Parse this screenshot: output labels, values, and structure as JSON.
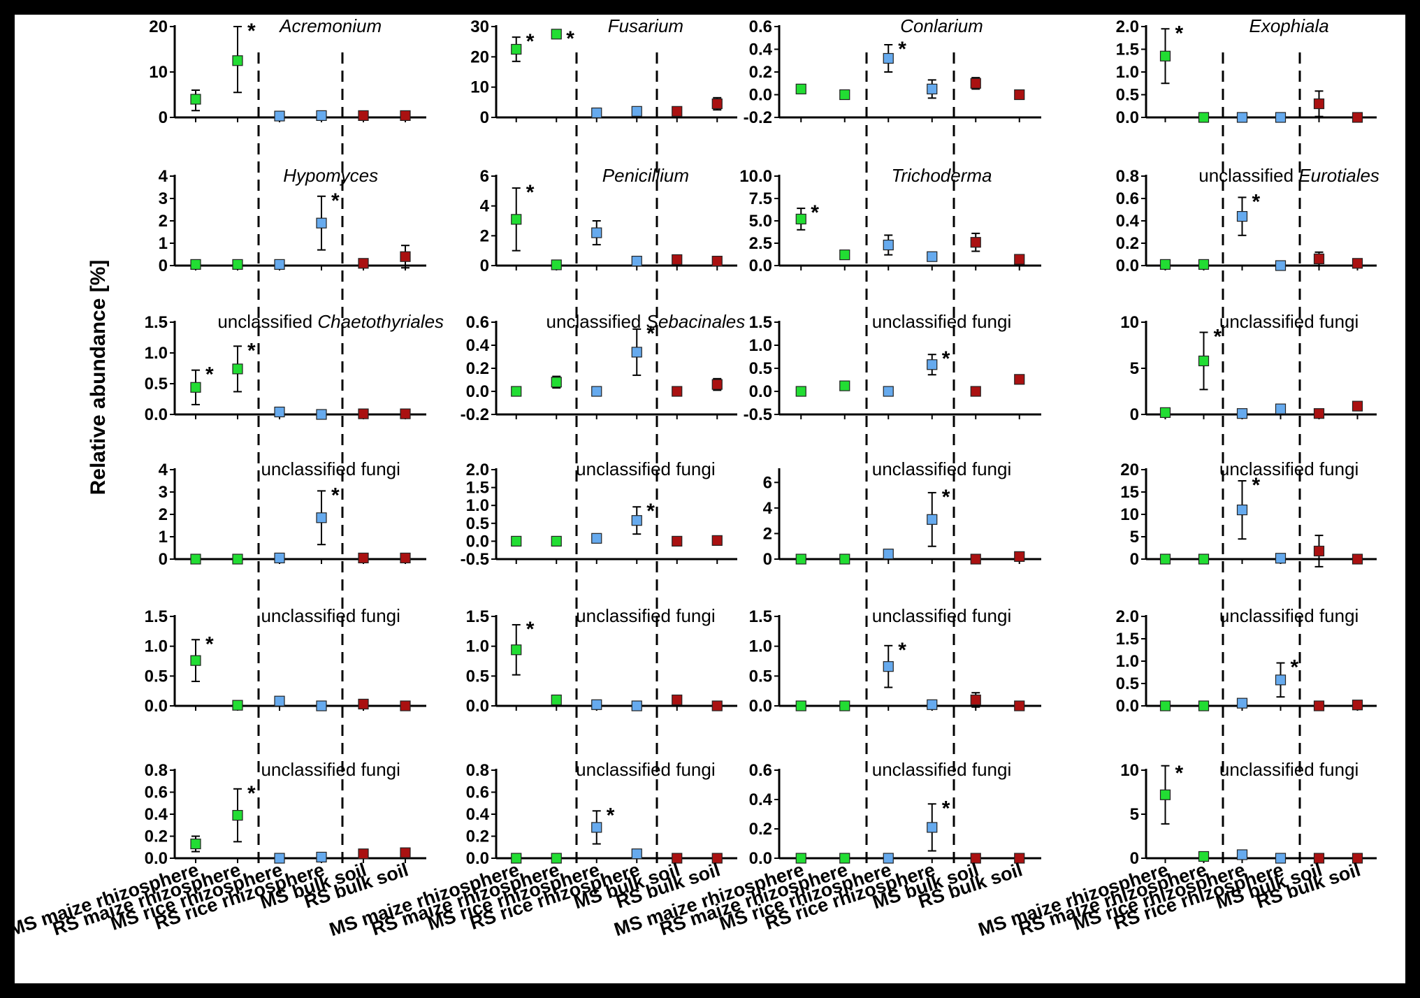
{
  "y_axis_label": "Relative abundance [%]",
  "categories": [
    "MS maize rhizosphere",
    "RS maize rhizosphere",
    "MS rice rhizosphere",
    "RS rice rhizosphere",
    "MS bulk soil",
    "RS bulk soil"
  ],
  "colors": {
    "maize": "#22dd33",
    "rice": "#66aaee",
    "bulk": "#aa1111",
    "axis": "#000000",
    "background": "#ffffff",
    "frame": "#000000"
  },
  "chart_data": [
    {
      "type": "scatter",
      "title": "Acremonium",
      "title_italic": true,
      "ylim": [
        0,
        20
      ],
      "ticks": [
        "0",
        "10",
        "20"
      ],
      "values": [
        4,
        12.5,
        0.3,
        0.4,
        0.4,
        0.4
      ],
      "err_low": [
        2.5,
        7,
        0,
        0,
        0,
        0
      ],
      "err_high": [
        2,
        7.5,
        0,
        0,
        0,
        0
      ],
      "sig": [
        false,
        true,
        false,
        false,
        false,
        false
      ]
    },
    {
      "type": "scatter",
      "title": "Fusarium",
      "title_italic": true,
      "ylim": [
        0,
        30
      ],
      "ticks": [
        "0",
        "10",
        "20",
        "30"
      ],
      "values": [
        22.5,
        27.5,
        1.5,
        2,
        2,
        4.5
      ],
      "err_low": [
        4,
        0,
        0,
        0,
        0,
        2
      ],
      "err_high": [
        4,
        0,
        0,
        0,
        0,
        2
      ],
      "sig": [
        true,
        true,
        false,
        false,
        false,
        false
      ]
    },
    {
      "type": "scatter",
      "title": "Conlarium",
      "title_italic": true,
      "ylim": [
        -0.2,
        0.6
      ],
      "ticks": [
        "-0.2",
        "0.0",
        "0.2",
        "0.4",
        "0.6"
      ],
      "values": [
        0.05,
        0.0,
        0.32,
        0.05,
        0.1,
        0.0
      ],
      "err_low": [
        0.02,
        0,
        0.12,
        0.08,
        0.05,
        0
      ],
      "err_high": [
        0.02,
        0,
        0.12,
        0.08,
        0.05,
        0
      ],
      "sig": [
        false,
        false,
        true,
        false,
        false,
        false
      ]
    },
    {
      "type": "scatter",
      "title": "Exophiala",
      "title_italic": true,
      "ylim": [
        0,
        2
      ],
      "ticks": [
        "0.0",
        "0.5",
        "1.0",
        "1.5",
        "2.0"
      ],
      "values": [
        1.35,
        0,
        0,
        0,
        0.3,
        0
      ],
      "err_low": [
        0.6,
        0,
        0,
        0,
        0.28,
        0
      ],
      "err_high": [
        0.6,
        0,
        0,
        0,
        0.28,
        0
      ],
      "sig": [
        true,
        false,
        false,
        false,
        false,
        false
      ]
    },
    {
      "type": "scatter",
      "title": "Hypomyces",
      "title_italic": true,
      "ylim": [
        0,
        4
      ],
      "ticks": [
        "0",
        "1",
        "2",
        "3",
        "4"
      ],
      "values": [
        0.05,
        0.05,
        0.05,
        1.9,
        0.1,
        0.4
      ],
      "err_low": [
        0,
        0,
        0,
        1.2,
        0,
        0.5
      ],
      "err_high": [
        0,
        0,
        0,
        1.2,
        0,
        0.5
      ],
      "sig": [
        false,
        false,
        false,
        true,
        false,
        false
      ]
    },
    {
      "type": "scatter",
      "title": "Penicillium",
      "title_italic": true,
      "ylim": [
        0,
        6
      ],
      "ticks": [
        "0",
        "2",
        "4",
        "6"
      ],
      "values": [
        3.1,
        0.05,
        2.2,
        0.3,
        0.4,
        0.3
      ],
      "err_low": [
        2.1,
        0,
        0.8,
        0,
        0,
        0
      ],
      "err_high": [
        2.1,
        0,
        0.8,
        0,
        0,
        0
      ],
      "sig": [
        true,
        false,
        false,
        false,
        false,
        false
      ]
    },
    {
      "type": "scatter",
      "title": "Trichoderma",
      "title_italic": true,
      "ylim": [
        0,
        10
      ],
      "ticks": [
        "0.0",
        "2.5",
        "5.0",
        "7.5",
        "10.0"
      ],
      "values": [
        5.2,
        1.2,
        2.3,
        1.0,
        2.6,
        0.7
      ],
      "err_low": [
        1.2,
        0,
        1.1,
        0,
        1.0,
        0.5
      ],
      "err_high": [
        1.2,
        0,
        1.1,
        0,
        1.0,
        0.5
      ],
      "sig": [
        true,
        false,
        false,
        false,
        false,
        false
      ]
    },
    {
      "type": "scatter",
      "title": "unclassified",
      "title_italic_part": "Eurotiales",
      "ylim": [
        0,
        0.8
      ],
      "ticks": [
        "0.0",
        "0.2",
        "0.4",
        "0.6",
        "0.8"
      ],
      "values": [
        0.01,
        0.01,
        0.44,
        0.0,
        0.06,
        0.02
      ],
      "err_low": [
        0,
        0,
        0.17,
        0,
        0.06,
        0
      ],
      "err_high": [
        0,
        0,
        0.17,
        0,
        0.06,
        0
      ],
      "sig": [
        false,
        false,
        true,
        false,
        false,
        false
      ]
    },
    {
      "type": "scatter",
      "title": "unclassified",
      "title_italic_part": "Chaetothyriales",
      "ylim": [
        0,
        1.5
      ],
      "ticks": [
        "0.0",
        "0.5",
        "1.0",
        "1.5"
      ],
      "values": [
        0.44,
        0.74,
        0.04,
        0.0,
        0.01,
        0.01
      ],
      "err_low": [
        0.28,
        0.37,
        0,
        0,
        0,
        0
      ],
      "err_high": [
        0.28,
        0.37,
        0,
        0,
        0,
        0
      ],
      "sig": [
        true,
        true,
        false,
        false,
        false,
        false
      ]
    },
    {
      "type": "scatter",
      "title": "unclassified",
      "title_italic_part": "Sebacinales",
      "ylim": [
        -0.2,
        0.6
      ],
      "ticks": [
        "-0.2",
        "0.0",
        "0.2",
        "0.4",
        "0.6"
      ],
      "values": [
        0.0,
        0.08,
        0.0,
        0.34,
        0.0,
        0.06
      ],
      "err_low": [
        0,
        0.05,
        0,
        0.2,
        0,
        0.05
      ],
      "err_high": [
        0,
        0.05,
        0,
        0.2,
        0,
        0.05
      ],
      "sig": [
        false,
        false,
        false,
        true,
        false,
        false
      ]
    },
    {
      "type": "scatter",
      "title": "unclassified fungi",
      "ylim": [
        -0.5,
        1.5
      ],
      "ticks": [
        "-0.5",
        "0.0",
        "0.5",
        "1.0",
        "1.5"
      ],
      "values": [
        0.0,
        0.12,
        0.0,
        0.58,
        0.0,
        0.26
      ],
      "err_low": [
        0,
        0,
        0,
        0.22,
        0,
        0
      ],
      "err_high": [
        0,
        0,
        0,
        0.22,
        0,
        0
      ],
      "sig": [
        false,
        false,
        false,
        true,
        false,
        false
      ]
    },
    {
      "type": "scatter",
      "title": "unclassified fungi",
      "ylim": [
        0,
        10
      ],
      "ticks": [
        "0",
        "5",
        "10"
      ],
      "values": [
        0.2,
        5.8,
        0.1,
        0.6,
        0.1,
        0.9
      ],
      "err_low": [
        0,
        3.1,
        0,
        0,
        0,
        0
      ],
      "err_high": [
        0,
        3.1,
        0,
        0,
        0,
        0
      ],
      "sig": [
        false,
        true,
        false,
        false,
        false,
        false
      ]
    },
    {
      "type": "scatter",
      "title": "unclassified fungi",
      "ylim": [
        0,
        4
      ],
      "ticks": [
        "0",
        "1",
        "2",
        "3",
        "4"
      ],
      "values": [
        0.0,
        0.0,
        0.05,
        1.85,
        0.05,
        0.05
      ],
      "err_low": [
        0,
        0,
        0,
        1.2,
        0,
        0
      ],
      "err_high": [
        0,
        0,
        0,
        1.2,
        0,
        0
      ],
      "sig": [
        false,
        false,
        false,
        true,
        false,
        false
      ]
    },
    {
      "type": "scatter",
      "title": "unclassified fungi",
      "ylim": [
        -0.5,
        2
      ],
      "ticks": [
        "-0.5",
        "0.0",
        "0.5",
        "1.0",
        "1.5",
        "2.0"
      ],
      "values": [
        0.0,
        0.0,
        0.08,
        0.58,
        0.0,
        0.02
      ],
      "err_low": [
        0,
        0,
        0,
        0.38,
        0,
        0
      ],
      "err_high": [
        0,
        0,
        0,
        0.38,
        0,
        0
      ],
      "sig": [
        false,
        false,
        false,
        true,
        false,
        false
      ]
    },
    {
      "type": "scatter",
      "title": "unclassified fungi",
      "ylim": [
        0,
        7
      ],
      "ticks": [
        "0",
        "2",
        "4",
        "6"
      ],
      "values": [
        0.0,
        0.0,
        0.4,
        3.1,
        0.0,
        0.2
      ],
      "err_low": [
        0,
        0,
        0,
        2.1,
        0,
        0
      ],
      "err_high": [
        0,
        0,
        0,
        2.1,
        0,
        0
      ],
      "sig": [
        false,
        false,
        false,
        true,
        false,
        false
      ]
    },
    {
      "type": "scatter",
      "title": "unclassified fungi",
      "ylim": [
        0,
        20
      ],
      "ticks": [
        "0",
        "5",
        "10",
        "15",
        "20"
      ],
      "values": [
        0.0,
        0.0,
        11,
        0.2,
        1.8,
        0.0
      ],
      "err_low": [
        0,
        0,
        6.5,
        0,
        3.5,
        0
      ],
      "err_high": [
        0,
        0,
        6.5,
        0,
        3.5,
        0
      ],
      "sig": [
        false,
        false,
        true,
        false,
        false,
        false
      ]
    },
    {
      "type": "scatter",
      "title": "unclassified fungi",
      "ylim": [
        0,
        1.5
      ],
      "ticks": [
        "0.0",
        "0.5",
        "1.0",
        "1.5"
      ],
      "values": [
        0.76,
        0.01,
        0.08,
        0.0,
        0.03,
        0.0
      ],
      "err_low": [
        0.35,
        0,
        0,
        0,
        0,
        0
      ],
      "err_high": [
        0.35,
        0,
        0,
        0,
        0,
        0
      ],
      "sig": [
        true,
        false,
        false,
        false,
        false,
        false
      ]
    },
    {
      "type": "scatter",
      "title": "unclassified fungi",
      "ylim": [
        0,
        1.5
      ],
      "ticks": [
        "0.0",
        "0.5",
        "1.0",
        "1.5"
      ],
      "values": [
        0.94,
        0.1,
        0.02,
        0.0,
        0.1,
        0.0
      ],
      "err_low": [
        0.42,
        0,
        0,
        0,
        0.05,
        0
      ],
      "err_high": [
        0.42,
        0,
        0,
        0,
        0.05,
        0
      ],
      "sig": [
        true,
        false,
        false,
        false,
        false,
        false
      ]
    },
    {
      "type": "scatter",
      "title": "unclassified fungi",
      "ylim": [
        0,
        1.5
      ],
      "ticks": [
        "0.0",
        "0.5",
        "1.0",
        "1.5"
      ],
      "values": [
        0.0,
        0.0,
        0.66,
        0.02,
        0.1,
        0.0
      ],
      "err_low": [
        0,
        0,
        0.35,
        0,
        0.12,
        0
      ],
      "err_high": [
        0,
        0,
        0.35,
        0,
        0.12,
        0
      ],
      "sig": [
        false,
        false,
        true,
        false,
        false,
        false
      ]
    },
    {
      "type": "scatter",
      "title": "unclassified fungi",
      "ylim": [
        0,
        2
      ],
      "ticks": [
        "0.0",
        "0.5",
        "1.0",
        "1.5",
        "2.0"
      ],
      "values": [
        0.0,
        0.0,
        0.06,
        0.58,
        0.0,
        0.02
      ],
      "err_low": [
        0,
        0,
        0,
        0.38,
        0,
        0
      ],
      "err_high": [
        0,
        0,
        0,
        0.38,
        0,
        0
      ],
      "sig": [
        false,
        false,
        false,
        true,
        false,
        false
      ]
    },
    {
      "type": "scatter",
      "title": "unclassified fungi",
      "ylim": [
        0,
        0.8
      ],
      "ticks": [
        "0.0",
        "0.2",
        "0.4",
        "0.6",
        "0.8"
      ],
      "values": [
        0.13,
        0.39,
        0.0,
        0.01,
        0.04,
        0.05
      ],
      "err_low": [
        0.07,
        0.24,
        0,
        0,
        0,
        0
      ],
      "err_high": [
        0.07,
        0.24,
        0,
        0,
        0,
        0
      ],
      "sig": [
        false,
        true,
        false,
        false,
        false,
        false
      ]
    },
    {
      "type": "scatter",
      "title": "unclassified fungi",
      "ylim": [
        0,
        0.8
      ],
      "ticks": [
        "0.0",
        "0.2",
        "0.4",
        "0.6",
        "0.8"
      ],
      "values": [
        0.0,
        0.0,
        0.28,
        0.04,
        0.0,
        0.0
      ],
      "err_low": [
        0,
        0,
        0.15,
        0,
        0,
        0
      ],
      "err_high": [
        0,
        0,
        0.15,
        0,
        0,
        0
      ],
      "sig": [
        false,
        false,
        true,
        false,
        false,
        false
      ]
    },
    {
      "type": "scatter",
      "title": "unclassified fungi",
      "ylim": [
        0,
        0.6
      ],
      "ticks": [
        "0.0",
        "0.2",
        "0.4",
        "0.6"
      ],
      "values": [
        0.0,
        0.0,
        0.0,
        0.21,
        0.0,
        0.0
      ],
      "err_low": [
        0,
        0,
        0,
        0.16,
        0,
        0
      ],
      "err_high": [
        0,
        0,
        0,
        0.16,
        0,
        0
      ],
      "sig": [
        false,
        false,
        false,
        true,
        false,
        false
      ]
    },
    {
      "type": "scatter",
      "title": "unclassified fungi",
      "ylim": [
        0,
        10
      ],
      "ticks": [
        "0",
        "5",
        "10"
      ],
      "values": [
        7.2,
        0.2,
        0.4,
        0.0,
        0.0,
        0.0
      ],
      "err_low": [
        3.3,
        0,
        0,
        0,
        0,
        0
      ],
      "err_high": [
        3.3,
        0,
        0,
        0,
        0,
        0
      ],
      "sig": [
        true,
        false,
        false,
        false,
        false,
        false
      ]
    }
  ]
}
